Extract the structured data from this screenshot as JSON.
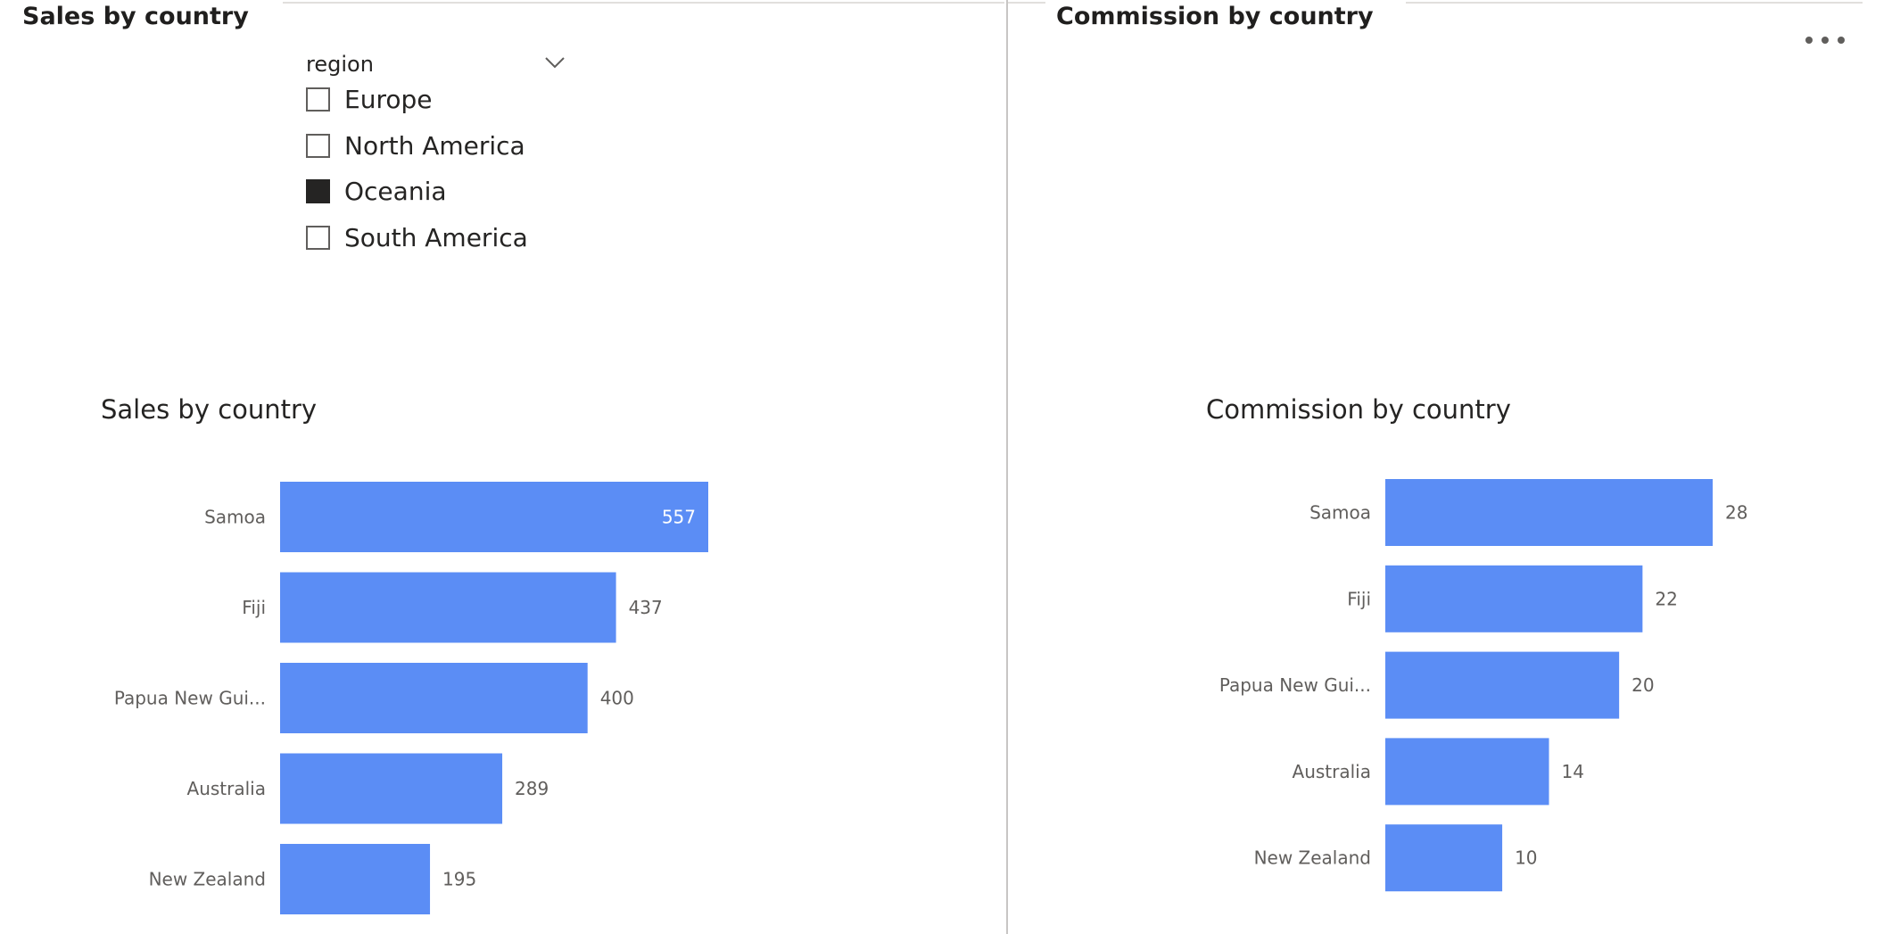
{
  "pages": {
    "left_tab": "Sales by country",
    "right_tab": "Commission by country"
  },
  "slicer": {
    "title": "region",
    "items": [
      {
        "label": "Europe",
        "checked": false
      },
      {
        "label": "North America",
        "checked": false
      },
      {
        "label": "Oceania",
        "checked": true
      },
      {
        "label": "South America",
        "checked": false
      }
    ]
  },
  "colors": {
    "bar": "#5b8df5",
    "text": "#252423",
    "label": "#605e5c"
  },
  "chart_data": [
    {
      "type": "bar",
      "orientation": "horizontal",
      "title": "Sales by country",
      "categories": [
        "Samoa",
        "Fiji",
        "Papua New Gui...",
        "Australia",
        "New Zealand"
      ],
      "values": [
        557,
        437,
        400,
        289,
        195
      ],
      "xlim": [
        0,
        557
      ],
      "grid": false,
      "legend": "none"
    },
    {
      "type": "bar",
      "orientation": "horizontal",
      "title": "Commission by country",
      "categories": [
        "Samoa",
        "Fiji",
        "Papua New Gui...",
        "Australia",
        "New Zealand"
      ],
      "values": [
        28,
        22,
        20,
        14,
        10
      ],
      "xlim": [
        0,
        28
      ],
      "grid": false,
      "legend": "none"
    }
  ]
}
